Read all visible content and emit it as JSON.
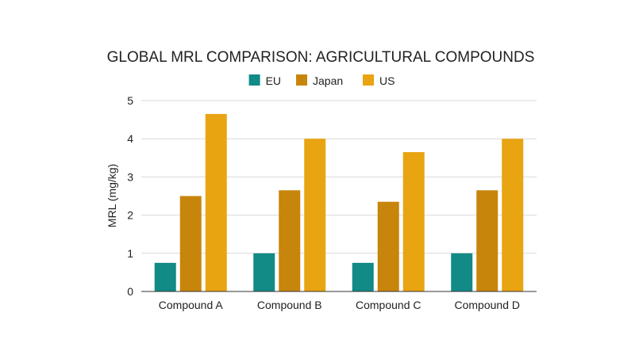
{
  "chart_data": {
    "type": "bar",
    "title": "GLOBAL MRL COMPARISON: AGRICULTURAL COMPOUNDS",
    "xlabel": "",
    "ylabel": "MRL (mg/kg)",
    "ylim": [
      0,
      5
    ],
    "yticks": [
      "0",
      "1",
      "2",
      "3",
      "4",
      "5"
    ],
    "grid": true,
    "legend_position": "top",
    "categories": [
      "Compound A",
      "Compound B",
      "Compound C",
      "Compound D"
    ],
    "series": [
      {
        "name": "EU",
        "color": "#128a86",
        "values": [
          0.75,
          1.0,
          0.75,
          1.0
        ]
      },
      {
        "name": "Japan",
        "color": "#c8850b",
        "values": [
          2.5,
          2.65,
          2.35,
          2.65
        ]
      },
      {
        "name": "US",
        "color": "#e9a412",
        "values": [
          4.65,
          4.0,
          3.65,
          4.0
        ]
      }
    ]
  }
}
